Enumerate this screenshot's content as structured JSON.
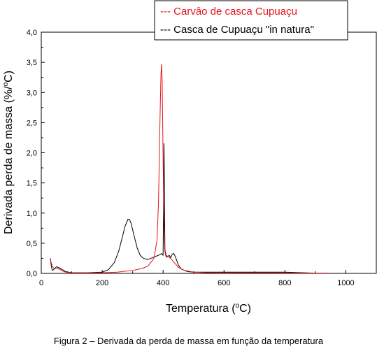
{
  "chart_data": {
    "type": "line",
    "xlabel_main": "Temperatura (",
    "xlabel_sup": "o",
    "xlabel_tail": "C)",
    "ylabel_main": "Derivada perda de massa (%/",
    "ylabel_sup": "o",
    "ylabel_tail": "C)",
    "xlim": [
      0,
      1100
    ],
    "ylim": [
      0,
      4.0
    ],
    "x_ticks": [
      0,
      200,
      400,
      600,
      800,
      1000
    ],
    "x_tick_labels": [
      "0",
      "200",
      "400",
      "600",
      "800",
      "1000"
    ],
    "y_ticks": [
      0,
      0.5,
      1.0,
      1.5,
      2.0,
      2.5,
      3.0,
      3.5,
      4.0
    ],
    "y_tick_labels": [
      "0,0",
      "0,5",
      "1,0",
      "1,5",
      "2,0",
      "2,5",
      "3,0",
      "3,5",
      "4,0"
    ],
    "legend_position": "top-right",
    "grid": false,
    "series": [
      {
        "name": "Carvâo de casca Cupuaçu",
        "legend_label": "--- Carvâo de casca Cupuaçu",
        "color": "#e8121a",
        "x": [
          30,
          35,
          40,
          50,
          60,
          70,
          80,
          100,
          150,
          200,
          250,
          300,
          330,
          350,
          370,
          380,
          385,
          390,
          393,
          395,
          397,
          400,
          403,
          405,
          408,
          410,
          420,
          430,
          440,
          450,
          470,
          500,
          550,
          600,
          700,
          800,
          900,
          940
        ],
        "y": [
          0.22,
          0.14,
          0.09,
          0.08,
          0.07,
          0.04,
          0.02,
          0.01,
          0.01,
          0.01,
          0.02,
          0.05,
          0.08,
          0.12,
          0.25,
          0.55,
          1.2,
          2.6,
          3.3,
          3.47,
          3.2,
          1.9,
          0.8,
          0.4,
          0.3,
          0.3,
          0.27,
          0.22,
          0.16,
          0.1,
          0.05,
          0.02,
          0.01,
          0.01,
          0.01,
          0.01,
          0.005,
          0.005
        ]
      },
      {
        "name": "Casca de Cupuaçu \"in natura\"",
        "legend_label": "--- Casca de Cupuaçu \"in natura\"",
        "color": "#000000",
        "x": [
          30,
          33,
          36,
          40,
          50,
          60,
          70,
          80,
          100,
          150,
          200,
          220,
          240,
          255,
          265,
          275,
          285,
          290,
          295,
          305,
          315,
          325,
          335,
          350,
          370,
          385,
          395,
          400,
          403,
          406,
          410,
          415,
          420,
          425,
          430,
          435,
          440,
          450,
          460,
          480,
          500,
          550,
          600,
          700,
          800,
          900
        ],
        "y": [
          0.25,
          0.12,
          0.05,
          0.06,
          0.11,
          0.09,
          0.06,
          0.03,
          0.01,
          0.01,
          0.02,
          0.06,
          0.18,
          0.38,
          0.58,
          0.78,
          0.9,
          0.89,
          0.83,
          0.62,
          0.42,
          0.3,
          0.25,
          0.23,
          0.27,
          0.3,
          0.33,
          0.3,
          2.15,
          0.4,
          0.27,
          0.28,
          0.3,
          0.26,
          0.32,
          0.33,
          0.28,
          0.14,
          0.07,
          0.03,
          0.02,
          0.02,
          0.02,
          0.02,
          0.02,
          0.005
        ]
      }
    ]
  },
  "caption": "Figura 2 – Derivada da perda de massa em função da temperatura"
}
